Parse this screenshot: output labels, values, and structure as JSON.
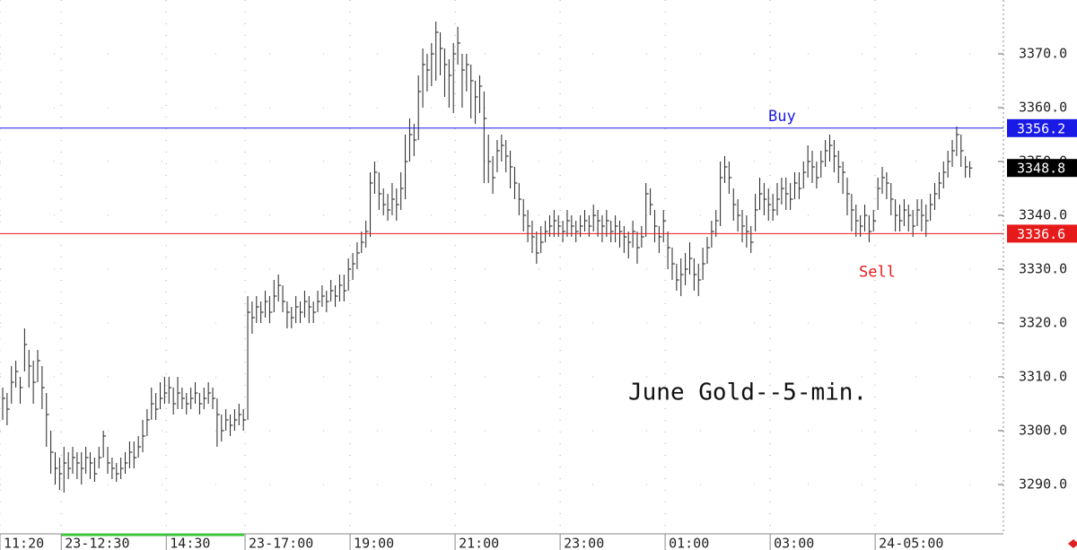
{
  "chart_data": {
    "type": "hlc",
    "annotation": "June Gold--5-min.",
    "color": "#222222",
    "ylim": [
      3282,
      3380
    ],
    "yticks": [
      {
        "value": 3290,
        "label": "3290.0"
      },
      {
        "value": 3300,
        "label": "3300.0"
      },
      {
        "value": 3310,
        "label": "3310.0"
      },
      {
        "value": 3320,
        "label": "3320.0"
      },
      {
        "value": 3330,
        "label": "3330.0"
      },
      {
        "value": 3340,
        "label": "3340.0"
      },
      {
        "value": 3350,
        "label": "3350.0"
      },
      {
        "value": 3360,
        "label": "3360.0"
      },
      {
        "value": 3370,
        "label": "3370.0"
      }
    ],
    "xlim": [
      0,
      229.3
    ],
    "xticks": [
      {
        "value": 0,
        "label": "11:20"
      },
      {
        "value": 14,
        "label": "23-12:30"
      },
      {
        "value": 38,
        "label": "14:30"
      },
      {
        "value": 56,
        "label": "23-17:00"
      },
      {
        "value": 80,
        "label": "19:00"
      },
      {
        "value": 104,
        "label": "21:00"
      },
      {
        "value": 128,
        "label": "23:00"
      },
      {
        "value": 152,
        "label": "01:00"
      },
      {
        "value": 176,
        "label": "03:00"
      },
      {
        "value": 200,
        "label": "24-05:00"
      }
    ],
    "levels": [
      {
        "name": "Buy",
        "value": 3356.2,
        "color": "#1a1ae6"
      },
      {
        "name": "Sell",
        "value": 3336.6,
        "color": "#e61a1a"
      }
    ],
    "last": {
      "value": 3348.8,
      "color": "#000000"
    },
    "high": [
      3308,
      3307,
      3312,
      3313,
      3310,
      3319,
      3315,
      3313,
      3315,
      3312,
      3307,
      3300,
      3296,
      3295,
      3297,
      3296,
      3297,
      3296,
      3296,
      3297,
      3296,
      3295,
      3297,
      3300,
      3297,
      3295,
      3294,
      3295,
      3296,
      3298,
      3298,
      3299,
      3302,
      3304,
      3308,
      3307,
      3309,
      3310,
      3310,
      3308,
      3310,
      3308,
      3307,
      3308,
      3309,
      3307,
      3308,
      3309,
      3308,
      3306,
      3303,
      3304,
      3303,
      3304,
      3305,
      3304,
      3325,
      3324,
      3325,
      3324,
      3326,
      3325,
      3328,
      3329,
      3327,
      3324,
      3323,
      3325,
      3324,
      3326,
      3325,
      3324,
      3326,
      3327,
      3326,
      3328,
      3327,
      3329,
      3329,
      3332,
      3333,
      3335,
      3337,
      3339,
      3348,
      3350,
      3348,
      3345,
      3344,
      3346,
      3345,
      3348,
      3355,
      3358,
      3357,
      3366,
      3371,
      3370,
      3372,
      3376,
      3374,
      3371,
      3369,
      3372,
      3375,
      3370,
      3370,
      3368,
      3365,
      3366,
      3363,
      3355,
      3351,
      3354,
      3355,
      3354,
      3352,
      3349,
      3346,
      3343,
      3341,
      3339,
      3337,
      3338,
      3339,
      3340,
      3341,
      3340,
      3339,
      3341,
      3340,
      3339,
      3340,
      3341,
      3340,
      3342,
      3341,
      3340,
      3341,
      3339,
      3340,
      3339,
      3338,
      3337,
      3339,
      3337,
      3338,
      3346,
      3345,
      3341,
      3338,
      3341,
      3337,
      3334,
      3331,
      3332,
      3333,
      3335,
      3332,
      3331,
      3334,
      3336,
      3339,
      3341,
      3350,
      3351,
      3350,
      3345,
      3343,
      3341,
      3340,
      3338,
      3344,
      3347,
      3346,
      3345,
      3344,
      3346,
      3347,
      3347,
      3346,
      3348,
      3348,
      3350,
      3353,
      3352,
      3350,
      3352,
      3354,
      3355,
      3354,
      3352,
      3350,
      3347,
      3344,
      3342,
      3340,
      3342,
      3340,
      3341,
      3347,
      3349,
      3348,
      3346,
      3343,
      3342,
      3343,
      3342,
      3341,
      3343,
      3343,
      3342,
      3344,
      3346,
      3348,
      3350,
      3352,
      3354,
      3356.5,
      3355,
      3351,
      3350
    ],
    "low": [
      3302,
      3301,
      3305,
      3308,
      3305,
      3311,
      3308,
      3305,
      3309,
      3304,
      3297,
      3292,
      3290,
      3289,
      3288.5,
      3291,
      3292,
      3291,
      3290,
      3292,
      3291,
      3290.5,
      3293,
      3295,
      3292,
      3291,
      3290.5,
      3291,
      3292,
      3293,
      3293,
      3295,
      3296,
      3299,
      3302,
      3302,
      3304,
      3305,
      3305,
      3303,
      3304,
      3304,
      3303,
      3304,
      3305,
      3303,
      3304,
      3305,
      3304,
      3297,
      3298,
      3300,
      3299,
      3300,
      3301,
      3300,
      3302,
      3318,
      3320,
      3320,
      3321,
      3320,
      3322,
      3324,
      3322,
      3319,
      3319,
      3320,
      3320,
      3321,
      3320,
      3320,
      3322,
      3323,
      3322,
      3324,
      3323,
      3324,
      3324,
      3326,
      3328,
      3330,
      3333,
      3334,
      3336,
      3344,
      3341,
      3340,
      3339,
      3340,
      3339,
      3341,
      3343,
      3350,
      3351,
      3354,
      3360,
      3363,
      3364,
      3365,
      3366,
      3362,
      3360,
      3359,
      3368,
      3360,
      3363,
      3358,
      3357,
      3359,
      3346,
      3346,
      3344,
      3348,
      3350,
      3348,
      3345,
      3343,
      3340,
      3337,
      3335,
      3333,
      3331,
      3333,
      3335,
      3336,
      3336,
      3336,
      3335,
      3336,
      3336,
      3335,
      3336,
      3337,
      3336,
      3337,
      3336,
      3335,
      3336,
      3335,
      3335,
      3334,
      3333,
      3332,
      3334,
      3331,
      3334,
      3336,
      3340,
      3335,
      3333,
      3335,
      3330,
      3328,
      3326,
      3325,
      3327,
      3329,
      3326,
      3325,
      3328,
      3331,
      3334,
      3336,
      3338,
      3346,
      3344,
      3339,
      3337,
      3335,
      3334,
      3333,
      3337,
      3341,
      3340,
      3339,
      3339,
      3340,
      3342,
      3341,
      3341,
      3343,
      3343,
      3345,
      3347,
      3346,
      3345,
      3347,
      3349,
      3350,
      3348,
      3346,
      3344,
      3340,
      3337,
      3336,
      3336,
      3337,
      3335,
      3337,
      3341,
      3344,
      3343,
      3340,
      3337,
      3337,
      3338,
      3337,
      3336,
      3338,
      3337,
      3336,
      3339,
      3341,
      3343,
      3345,
      3347,
      3349,
      3351,
      3349,
      3347,
      3347
    ],
    "close": [
      3306,
      3304,
      3309,
      3311,
      3308,
      3316,
      3312,
      3309,
      3313,
      3308,
      3303,
      3296,
      3293,
      3292,
      3294,
      3293,
      3295,
      3294,
      3293,
      3295,
      3294,
      3292,
      3295,
      3299,
      3294,
      3293,
      3292,
      3293,
      3294,
      3296,
      3295,
      3297,
      3299,
      3302,
      3305,
      3304,
      3306,
      3307,
      3308,
      3305,
      3307,
      3306,
      3305,
      3306,
      3307,
      3305,
      3306,
      3307,
      3306,
      3303,
      3300,
      3302,
      3301,
      3302,
      3303,
      3302,
      3322,
      3321,
      3323,
      3322,
      3324,
      3322,
      3325,
      3327,
      3324,
      3322,
      3321,
      3323,
      3322,
      3324,
      3323,
      3322,
      3324,
      3325,
      3324,
      3326,
      3325,
      3327,
      3326,
      3330,
      3331,
      3333,
      3335,
      3337,
      3346,
      3348,
      3344,
      3342,
      3341,
      3343,
      3342,
      3345,
      3350,
      3355,
      3354,
      3363,
      3368,
      3367,
      3370,
      3374,
      3371,
      3368,
      3366,
      3370,
      3372,
      3367,
      3368,
      3365,
      3362,
      3364,
      3358,
      3350,
      3347,
      3352,
      3353,
      3351,
      3349,
      3346,
      3343,
      3340,
      3338,
      3336,
      3333,
      3335,
      3337,
      3338,
      3339,
      3338,
      3337,
      3339,
      3338,
      3337,
      3338,
      3339,
      3338,
      3340,
      3339,
      3338,
      3339,
      3337,
      3338,
      3337,
      3336,
      3335,
      3337,
      3334,
      3336,
      3344,
      3342,
      3338,
      3336,
      3339,
      3334,
      3331,
      3328,
      3329,
      3330,
      3332,
      3329,
      3328,
      3331,
      3334,
      3337,
      3339,
      3347,
      3349,
      3347,
      3342,
      3340,
      3338,
      3337,
      3335,
      3341,
      3344,
      3343,
      3342,
      3341,
      3343,
      3345,
      3344,
      3343,
      3346,
      3345,
      3348,
      3350,
      3349,
      3347,
      3350,
      3352,
      3353,
      3351,
      3349,
      3348,
      3344,
      3341,
      3339,
      3338,
      3340,
      3337,
      3339,
      3345,
      3347,
      3346,
      3343,
      3340,
      3339,
      3341,
      3340,
      3338,
      3341,
      3340,
      3339,
      3342,
      3344,
      3346,
      3348,
      3350,
      3352,
      3355,
      3352,
      3349,
      3348.8
    ]
  }
}
